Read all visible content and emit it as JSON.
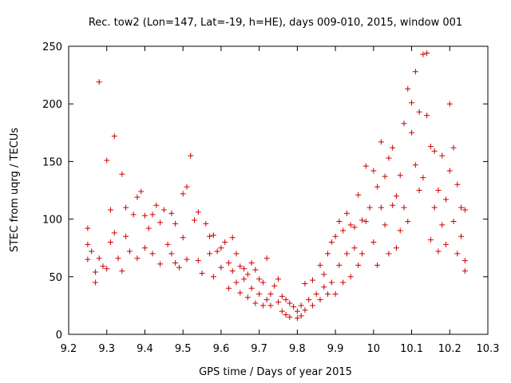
{
  "chart_data": {
    "type": "scatter",
    "title": "Rec. tow2 (Lon=147, Lat=-19, h=HE), days 009-010, 2015, window 001",
    "xlabel": "GPS time / Days of year 2015",
    "ylabel": "STEC from uqrg / TECUs",
    "xlim": [
      9.2,
      10.3
    ],
    "ylim": [
      0,
      250
    ],
    "xticks": [
      "9.2",
      "9.3",
      "9.4",
      "9.5",
      "9.6",
      "9.7",
      "9.8",
      "9.9",
      "10",
      "10.1",
      "10.2",
      "10.3"
    ],
    "yticks": [
      "0",
      "50",
      "100",
      "150",
      "200",
      "250"
    ],
    "grid": false,
    "marker": "plus",
    "color": "#cc0000",
    "series": [
      {
        "name": "STEC",
        "points": [
          [
            9.25,
            92
          ],
          [
            9.25,
            78
          ],
          [
            9.25,
            65
          ],
          [
            9.26,
            72
          ],
          [
            9.27,
            54
          ],
          [
            9.27,
            45
          ],
          [
            9.28,
            219
          ],
          [
            9.28,
            66
          ],
          [
            9.29,
            59
          ],
          [
            9.3,
            151
          ],
          [
            9.3,
            57
          ],
          [
            9.31,
            108
          ],
          [
            9.31,
            80
          ],
          [
            9.32,
            172
          ],
          [
            9.32,
            88
          ],
          [
            9.33,
            66
          ],
          [
            9.34,
            139
          ],
          [
            9.34,
            55
          ],
          [
            9.35,
            110
          ],
          [
            9.35,
            85
          ],
          [
            9.36,
            72
          ],
          [
            9.37,
            104
          ],
          [
            9.38,
            119
          ],
          [
            9.38,
            66
          ],
          [
            9.39,
            124
          ],
          [
            9.4,
            103
          ],
          [
            9.4,
            75
          ],
          [
            9.41,
            92
          ],
          [
            9.42,
            104
          ],
          [
            9.42,
            70
          ],
          [
            9.43,
            112
          ],
          [
            9.44,
            97
          ],
          [
            9.44,
            61
          ],
          [
            9.45,
            108
          ],
          [
            9.46,
            78
          ],
          [
            9.47,
            105
          ],
          [
            9.47,
            70
          ],
          [
            9.48,
            96
          ],
          [
            9.48,
            62
          ],
          [
            9.49,
            58
          ],
          [
            9.5,
            122
          ],
          [
            9.5,
            84
          ],
          [
            9.51,
            128
          ],
          [
            9.51,
            65
          ],
          [
            9.52,
            155
          ],
          [
            9.53,
            99
          ],
          [
            9.54,
            106
          ],
          [
            9.54,
            64
          ],
          [
            9.55,
            53
          ],
          [
            9.56,
            96
          ],
          [
            9.57,
            85
          ],
          [
            9.57,
            70
          ],
          [
            9.58,
            86
          ],
          [
            9.58,
            50
          ],
          [
            9.59,
            72
          ],
          [
            9.6,
            75
          ],
          [
            9.6,
            58
          ],
          [
            9.61,
            80
          ],
          [
            9.62,
            62
          ],
          [
            9.62,
            40
          ],
          [
            9.63,
            84
          ],
          [
            9.63,
            55
          ],
          [
            9.64,
            70
          ],
          [
            9.64,
            45
          ],
          [
            9.65,
            59
          ],
          [
            9.65,
            36
          ],
          [
            9.66,
            57
          ],
          [
            9.66,
            48
          ],
          [
            9.67,
            52
          ],
          [
            9.67,
            32
          ],
          [
            9.68,
            62
          ],
          [
            9.68,
            40
          ],
          [
            9.69,
            56
          ],
          [
            9.69,
            27
          ],
          [
            9.7,
            48
          ],
          [
            9.7,
            35
          ],
          [
            9.71,
            45
          ],
          [
            9.71,
            25
          ],
          [
            9.72,
            66
          ],
          [
            9.72,
            30
          ],
          [
            9.73,
            35
          ],
          [
            9.73,
            25
          ],
          [
            9.74,
            42
          ],
          [
            9.75,
            48
          ],
          [
            9.75,
            28
          ],
          [
            9.76,
            33
          ],
          [
            9.76,
            20
          ],
          [
            9.77,
            30
          ],
          [
            9.77,
            17
          ],
          [
            9.78,
            27
          ],
          [
            9.78,
            15
          ],
          [
            9.79,
            24
          ],
          [
            9.8,
            20
          ],
          [
            9.8,
            14
          ],
          [
            9.81,
            25
          ],
          [
            9.81,
            16
          ],
          [
            9.82,
            44
          ],
          [
            9.82,
            21
          ],
          [
            9.83,
            30
          ],
          [
            9.84,
            47
          ],
          [
            9.84,
            25
          ],
          [
            9.85,
            35
          ],
          [
            9.86,
            60
          ],
          [
            9.86,
            30
          ],
          [
            9.87,
            52
          ],
          [
            9.87,
            41
          ],
          [
            9.88,
            70
          ],
          [
            9.88,
            35
          ],
          [
            9.89,
            80
          ],
          [
            9.89,
            45
          ],
          [
            9.9,
            85
          ],
          [
            9.9,
            35
          ],
          [
            9.91,
            98
          ],
          [
            9.91,
            60
          ],
          [
            9.92,
            90
          ],
          [
            9.92,
            45
          ],
          [
            9.93,
            105
          ],
          [
            9.93,
            70
          ],
          [
            9.94,
            95
          ],
          [
            9.94,
            50
          ],
          [
            9.95,
            93
          ],
          [
            9.95,
            75
          ],
          [
            9.96,
            121
          ],
          [
            9.96,
            60
          ],
          [
            9.97,
            99
          ],
          [
            9.97,
            70
          ],
          [
            9.98,
            146
          ],
          [
            9.98,
            98
          ],
          [
            9.99,
            110
          ],
          [
            10.0,
            142
          ],
          [
            10.0,
            80
          ],
          [
            10.01,
            128
          ],
          [
            10.01,
            60
          ],
          [
            10.02,
            167
          ],
          [
            10.02,
            110
          ],
          [
            10.03,
            137
          ],
          [
            10.03,
            95
          ],
          [
            10.04,
            153
          ],
          [
            10.04,
            70
          ],
          [
            10.05,
            162
          ],
          [
            10.05,
            112
          ],
          [
            10.06,
            120
          ],
          [
            10.06,
            75
          ],
          [
            10.07,
            138
          ],
          [
            10.07,
            90
          ],
          [
            10.08,
            183
          ],
          [
            10.08,
            110
          ],
          [
            10.09,
            213
          ],
          [
            10.09,
            98
          ],
          [
            10.1,
            201
          ],
          [
            10.1,
            175
          ],
          [
            10.11,
            228
          ],
          [
            10.11,
            147
          ],
          [
            10.12,
            193
          ],
          [
            10.12,
            125
          ],
          [
            10.13,
            243
          ],
          [
            10.13,
            136
          ],
          [
            10.14,
            244
          ],
          [
            10.14,
            190
          ],
          [
            10.15,
            163
          ],
          [
            10.15,
            82
          ],
          [
            10.16,
            159
          ],
          [
            10.16,
            110
          ],
          [
            10.17,
            125
          ],
          [
            10.17,
            72
          ],
          [
            10.18,
            155
          ],
          [
            10.18,
            95
          ],
          [
            10.19,
            117
          ],
          [
            10.19,
            78
          ],
          [
            10.2,
            200
          ],
          [
            10.2,
            142
          ],
          [
            10.21,
            162
          ],
          [
            10.21,
            98
          ],
          [
            10.22,
            130
          ],
          [
            10.22,
            70
          ],
          [
            10.23,
            110
          ],
          [
            10.23,
            85
          ],
          [
            10.24,
            108
          ],
          [
            10.24,
            64
          ],
          [
            10.24,
            55
          ]
        ]
      }
    ]
  }
}
